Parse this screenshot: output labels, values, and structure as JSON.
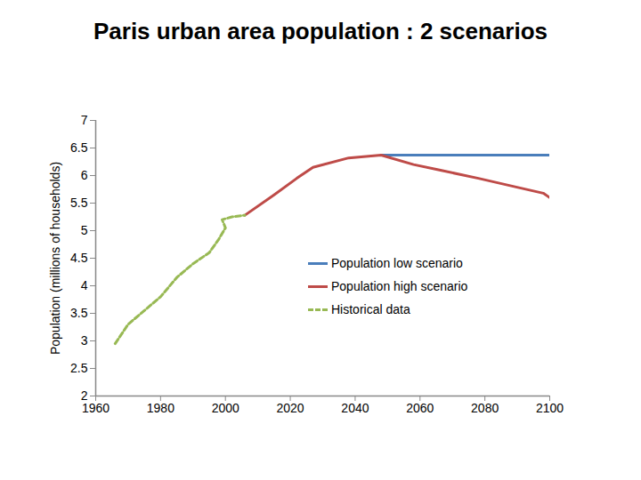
{
  "chart_data": {
    "type": "line",
    "title": "Paris urban area population : 2 scenarios",
    "y_label": "Population (millions of households)",
    "x": [
      1966,
      1970,
      1975,
      1980,
      1985,
      1990,
      1995,
      1998,
      2000,
      1999,
      2002,
      2006,
      2015,
      2022,
      2027,
      2038,
      2048,
      2058,
      2066,
      2078,
      2089,
      2098,
      2100
    ],
    "series": [
      {
        "name": "Population low scenario",
        "color": "#4a7ebb",
        "line_style": "solid",
        "values": [
          null,
          null,
          null,
          null,
          null,
          null,
          null,
          null,
          null,
          null,
          null,
          null,
          null,
          null,
          null,
          null,
          6.37,
          6.37,
          6.37,
          6.37,
          6.37,
          6.37,
          6.37
        ]
      },
      {
        "name": "Population high scenario",
        "color": "#be4b48",
        "line_style": "solid",
        "values": [
          null,
          null,
          null,
          null,
          null,
          null,
          null,
          null,
          null,
          null,
          null,
          5.28,
          5.65,
          5.95,
          6.15,
          6.32,
          6.37,
          6.2,
          6.1,
          5.95,
          5.8,
          5.68,
          5.6
        ]
      },
      {
        "name": "Historical data",
        "color": "#98b954",
        "line_style": "dashed",
        "values": [
          2.95,
          3.3,
          3.55,
          3.8,
          4.15,
          4.4,
          4.6,
          4.85,
          5.05,
          5.2,
          5.25,
          5.28,
          null,
          null,
          null,
          null,
          null,
          null,
          null,
          null,
          null,
          null,
          null
        ]
      }
    ],
    "xlim": [
      1960,
      2100
    ],
    "xticks": [
      1960,
      1980,
      2000,
      2020,
      2040,
      2060,
      2080,
      2100
    ],
    "ylim": [
      2,
      7
    ],
    "yticks": [
      2,
      2.5,
      3,
      3.5,
      4,
      4.5,
      5,
      5.5,
      6,
      6.5,
      7
    ],
    "grid": false,
    "legend": "right"
  }
}
